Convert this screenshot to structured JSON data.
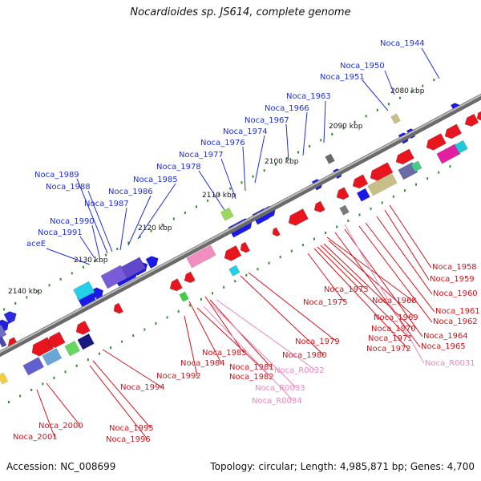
{
  "title": "Nocardioides sp. JS614, complete genome",
  "footer": {
    "accession": "Accession: NC_008699",
    "summary": "Topology: circular; Length: 4,985,871 bp; Genes: 4,700"
  },
  "colors": {
    "forward_gene": "#1a1aff",
    "reverse_gene": "#e8151e",
    "rrna": "#f08fbf",
    "label_forward": "#1f2fd9",
    "label_reverse": "#d2151b",
    "label_rna": "#e889bd",
    "tick": "#2f8f2f",
    "backbone": "#808080"
  },
  "scale_labels": [
    "2080 kbp",
    "2090 kbp",
    "2100 kbp",
    "2110 kbp",
    "2120 kbp",
    "2130 kbp",
    "2140 kbp"
  ],
  "forward_labels": [
    "Noca_1944",
    "Noca_1950",
    "Noca_1951",
    "Noca_1963",
    "Noca_1966",
    "Noca_1967",
    "Noca_1974",
    "Noca_1976",
    "Noca_1977",
    "Noca_1978",
    "Noca_1985",
    "Noca_1986",
    "Noca_1989",
    "Noca_1988",
    "Noca_1987",
    "Noca_1990",
    "Noca_1991",
    "aceE"
  ],
  "reverse_labels": [
    "Noca_1958",
    "Noca_1959",
    "Noca_1960",
    "Noca_1961",
    "Noca_1962",
    "Noca_1964",
    "Noca_1965",
    "Noca_1973",
    "Noca_1975",
    "Noca_1968",
    "Noca_1969",
    "Noca_1970",
    "Noca_1971",
    "Noca_1972",
    "Noca_1979",
    "Noca_1980",
    "Noca_1983",
    "Noca_1984",
    "Noca_1981",
    "Noca_1982",
    "Noca_1992",
    "Noca_1994",
    "Noca_1995",
    "Noca_1996",
    "Noca_2000",
    "Noca_2001"
  ],
  "rna_labels": [
    "Noca_R0031",
    "Noca_R0032",
    "Noca_R0033",
    "Noca_R0034"
  ]
}
